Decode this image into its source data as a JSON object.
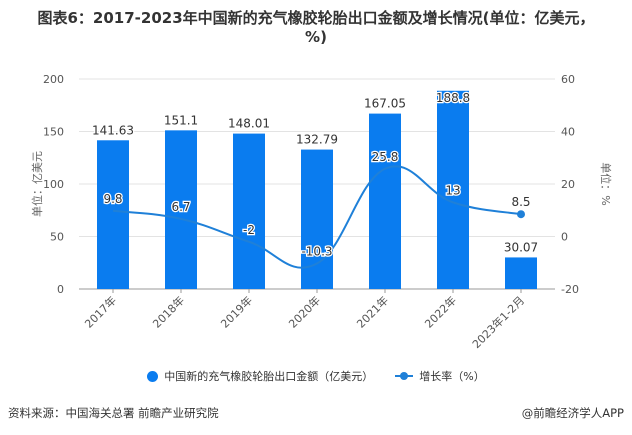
{
  "title": "图表6：2017-2023年中国新的充气橡胶轮胎出口金额及增长情况(单位：亿美元，%)",
  "chart_data": {
    "type": "bar+line",
    "title": "图表6：2017-2023年中国新的充气橡胶轮胎出口金额及增长情况(单位：亿美元，%)",
    "categories": [
      "2017年",
      "2018年",
      "2019年",
      "2020年",
      "2021年",
      "2022年",
      "2023年1-2月"
    ],
    "series": [
      {
        "name": "中国新的充气橡胶轮胎出口金额（亿美元）",
        "type": "bar",
        "axis": "left",
        "values": [
          141.63,
          151.1,
          148.01,
          132.79,
          167.05,
          188.8,
          30.07
        ],
        "labels": [
          "141.63",
          "151.1",
          "148.01",
          "132.79",
          "167.05",
          "188.8",
          "30.07"
        ],
        "color": "#0a7cef"
      },
      {
        "name": "增长率（%）",
        "type": "line",
        "axis": "right",
        "values": [
          9.8,
          6.7,
          -2,
          -10.3,
          25.8,
          13,
          8.5
        ],
        "labels": [
          "9.8",
          "6.7",
          "-2",
          "-10.3",
          "25.8",
          "13",
          "8.5"
        ],
        "color": "#1f80d8"
      }
    ],
    "left_axis": {
      "label": "单位：亿美元",
      "range": [
        0,
        200
      ],
      "ticks": [
        "0",
        "50",
        "100",
        "150",
        "200"
      ]
    },
    "right_axis": {
      "label": "单位：%",
      "range": [
        -20,
        60
      ],
      "ticks": [
        "-20",
        "0",
        "20",
        "40",
        "60"
      ]
    },
    "grid": true,
    "legend": "bottom"
  },
  "legend": {
    "bar": "中国新的充气橡胶轮胎出口金额（亿美元）",
    "line": "增长率（%）"
  },
  "footer": {
    "source": "资料来源：中国海关总署 前瞻产业研究院",
    "credit": "@前瞻经济学人APP"
  }
}
